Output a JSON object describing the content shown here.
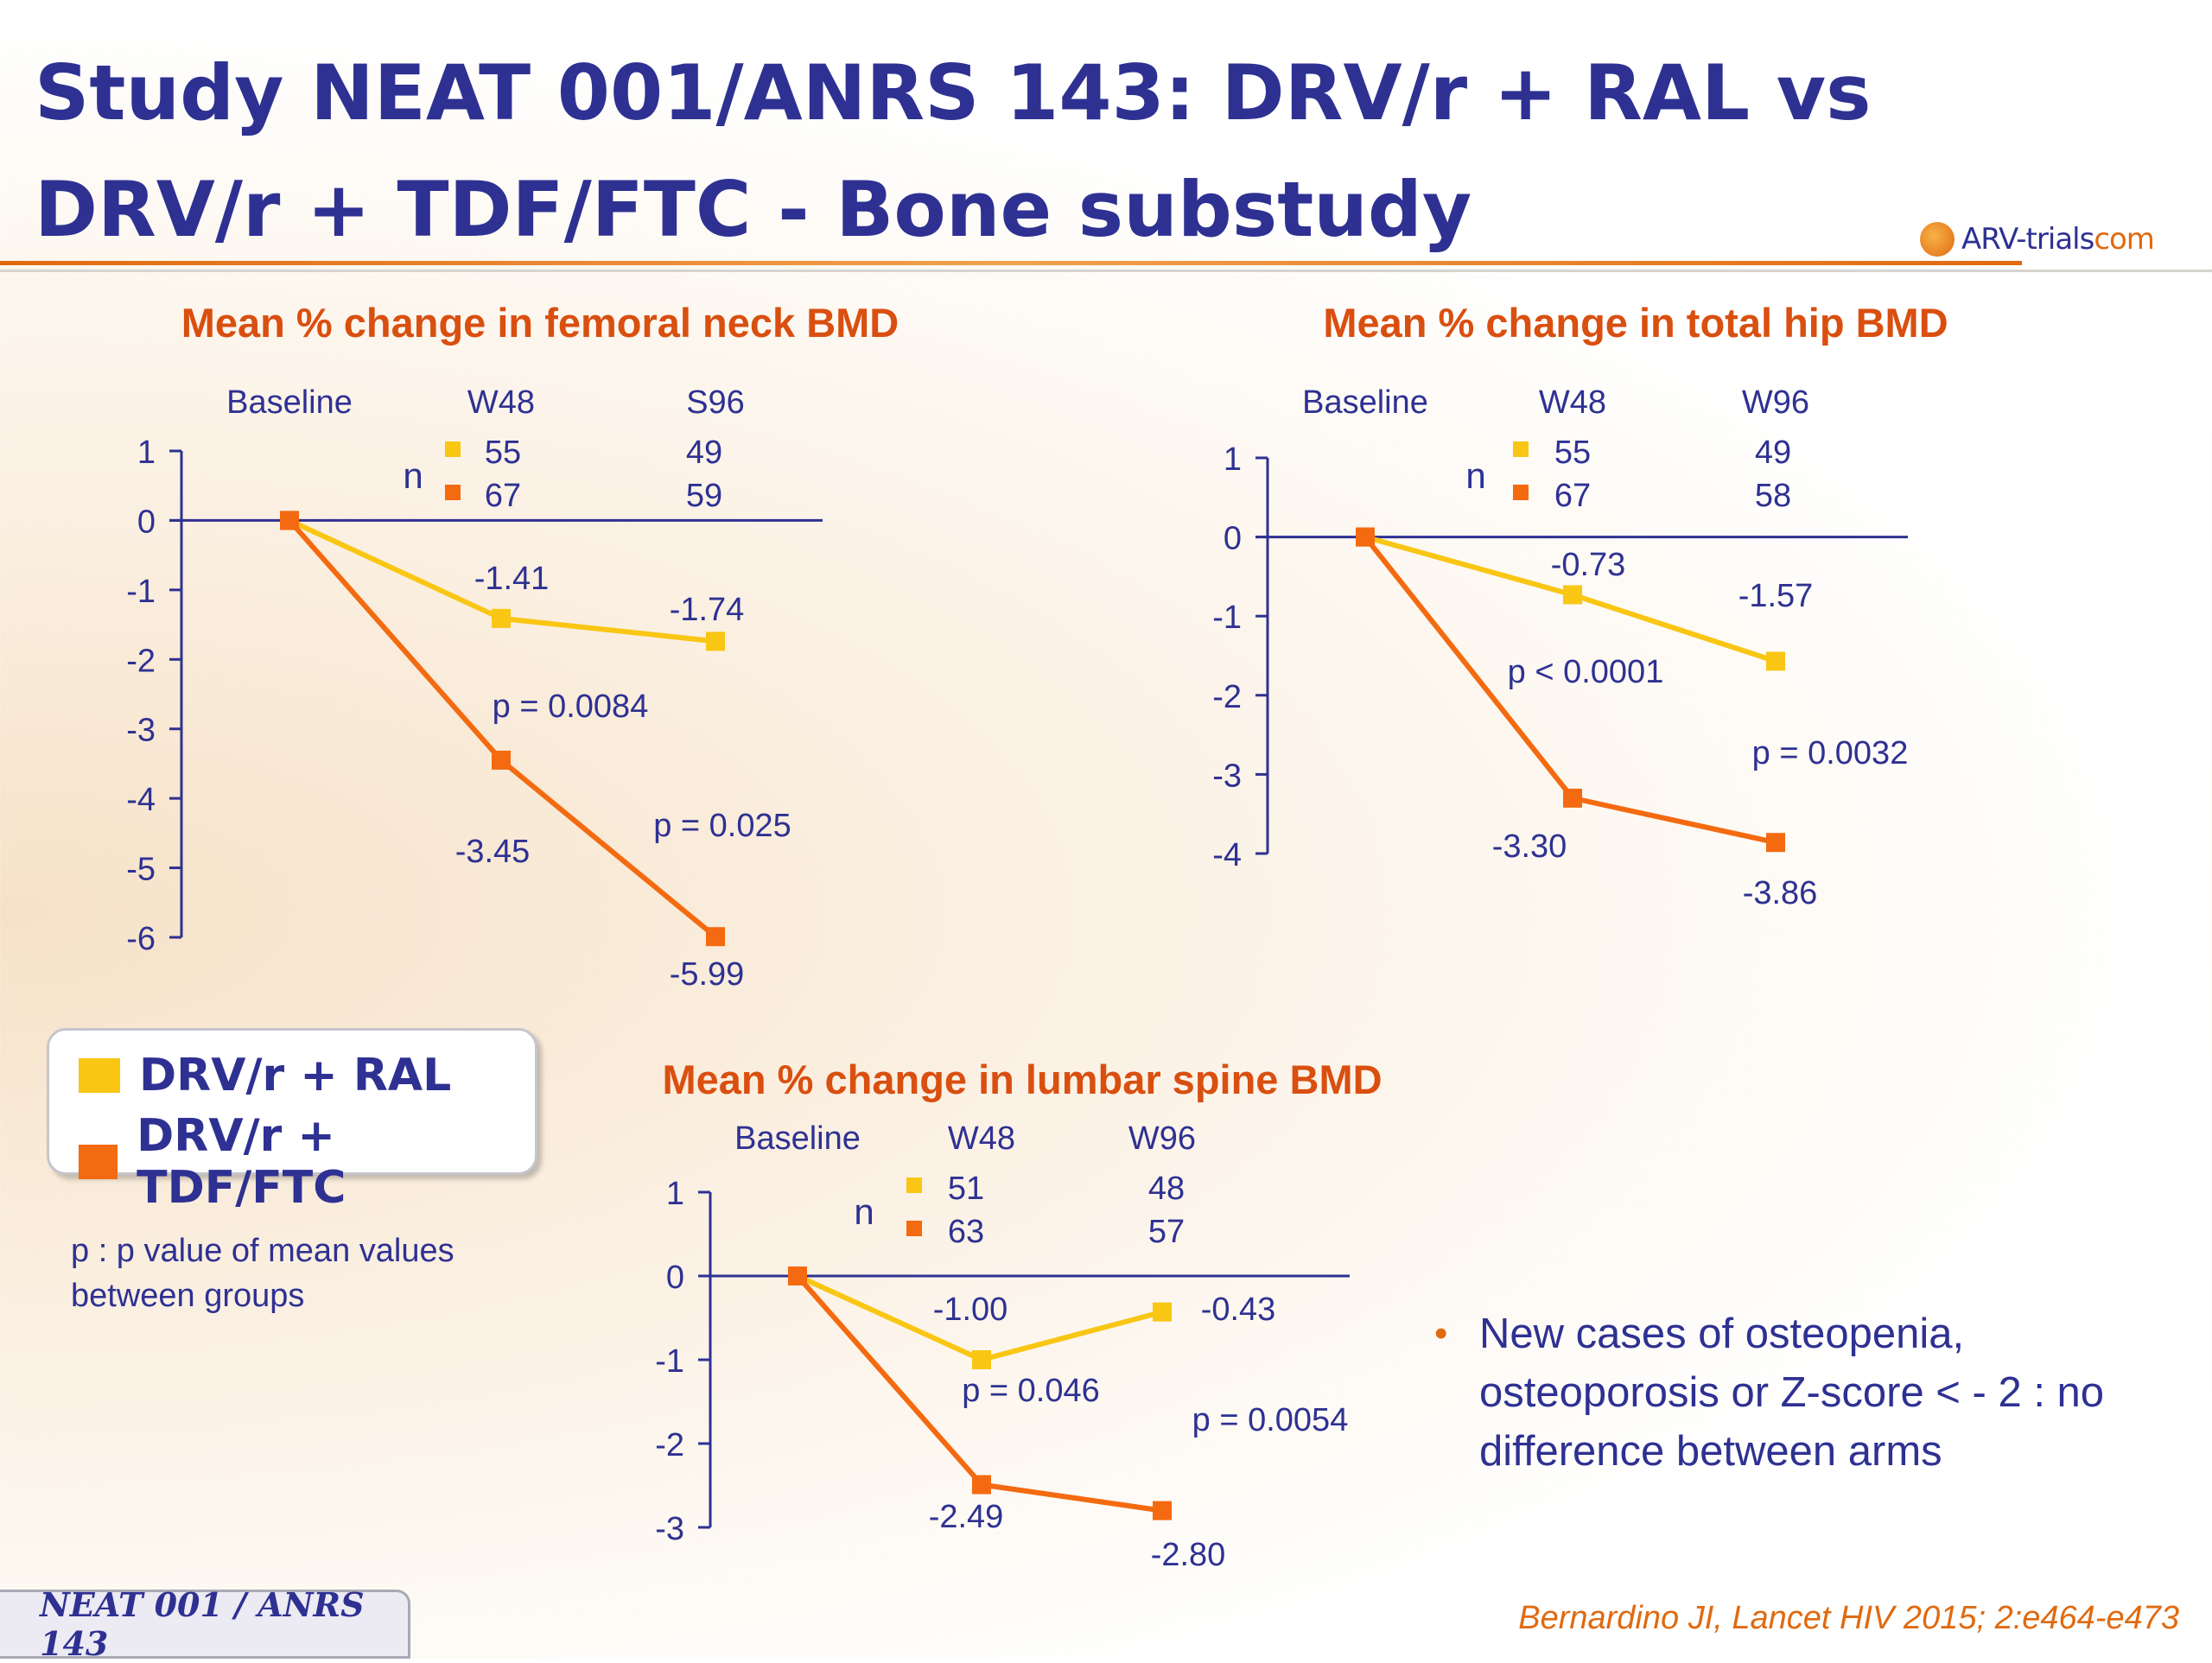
{
  "slide": {
    "title": "Study NEAT 001/ANRS 143: DRV/r + RAL vs DRV/r + TDF/FTC - Bone substudy",
    "logo": {
      "text_main": "ARV-trials",
      "text_suffix": "com"
    },
    "legend": [
      {
        "label": "DRV/r + RAL",
        "color": "#f9c614"
      },
      {
        "label": "DRV/r + TDF/FTC",
        "color": "#f46a10"
      }
    ],
    "note": "p : p value of mean values between groups",
    "bullet": "New cases of osteopenia, osteoporosis or Z-score < - 2 : no difference between arms",
    "footer": "NEAT 001 / ANRS 143",
    "citation": "Bernardino JI, Lancet HIV 2015; 2:e464-e473"
  },
  "chart_data": [
    {
      "type": "line",
      "title": "Mean % change in femoral neck BMD",
      "x": [
        "Baseline",
        "W48",
        "S96"
      ],
      "ylim": [
        -6,
        1
      ],
      "yticks": [
        1,
        0,
        -1,
        -2,
        -3,
        -4,
        -5,
        -6
      ],
      "n_label": "n",
      "series": [
        {
          "name": "DRV/r + RAL",
          "color": "#f9c614",
          "values": [
            0,
            -1.41,
            -1.74
          ],
          "value_labels": [
            "-1.41",
            "-1.74"
          ],
          "n": [
            55,
            49
          ]
        },
        {
          "name": "DRV/r + TDF/FTC",
          "color": "#f46a10",
          "values": [
            0,
            -3.45,
            -5.99
          ],
          "value_labels": [
            "-3.45",
            "-5.99"
          ],
          "n": [
            67,
            59
          ]
        }
      ],
      "p_values": [
        "p = 0.0084",
        "p = 0.025"
      ]
    },
    {
      "type": "line",
      "title": "Mean % change in total hip BMD",
      "x": [
        "Baseline",
        "W48",
        "W96"
      ],
      "ylim": [
        -4,
        1
      ],
      "yticks": [
        1,
        0,
        -1,
        -2,
        -3,
        -4
      ],
      "n_label": "n",
      "series": [
        {
          "name": "DRV/r + RAL",
          "color": "#f9c614",
          "values": [
            0,
            -0.73,
            -1.57
          ],
          "value_labels": [
            "-0.73",
            "-1.57"
          ],
          "n": [
            55,
            49
          ]
        },
        {
          "name": "DRV/r + TDF/FTC",
          "color": "#f46a10",
          "values": [
            0,
            -3.3,
            -3.86
          ],
          "value_labels": [
            "-3.30",
            "-3.86"
          ],
          "n": [
            67,
            58
          ]
        }
      ],
      "p_values": [
        "p < 0.0001",
        "p = 0.0032"
      ]
    },
    {
      "type": "line",
      "title": "Mean % change in  lumbar spine BMD",
      "x": [
        "Baseline",
        "W48",
        "W96"
      ],
      "ylim": [
        -3,
        1
      ],
      "yticks": [
        1,
        0,
        -1,
        -2,
        -3
      ],
      "n_label": "n",
      "series": [
        {
          "name": "DRV/r + RAL",
          "color": "#f9c614",
          "values": [
            0,
            -1.0,
            -0.43
          ],
          "value_labels": [
            "-1.00",
            "-0.43"
          ],
          "n": [
            51,
            48
          ]
        },
        {
          "name": "DRV/r + TDF/FTC",
          "color": "#f46a10",
          "values": [
            0,
            -2.49,
            -2.8
          ],
          "value_labels": [
            "-2.49",
            "-2.80"
          ],
          "n": [
            63,
            57
          ]
        }
      ],
      "p_values": [
        "p = 0.046",
        "p = 0.0054"
      ]
    }
  ]
}
